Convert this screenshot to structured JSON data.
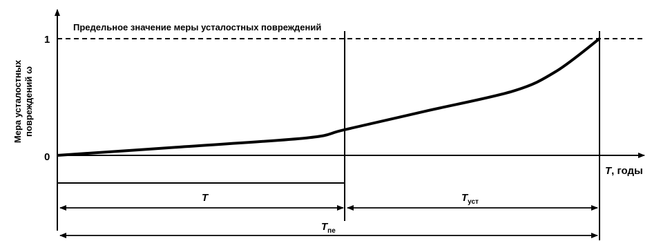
{
  "chart_data": {
    "type": "line",
    "ylabel_line1": "Мера усталостных",
    "ylabel_line2": "повреждений ω",
    "xlabel_main": "T",
    "xlabel_suffix": ", годы",
    "limit_label": "Предельное значение меры усталостных повреждений",
    "yticks": [
      "0",
      "1"
    ],
    "ylim": [
      0,
      1
    ],
    "xlim": [
      0,
      1
    ],
    "current_time_fraction": 0.53,
    "series": [
      {
        "points": [
          [
            0,
            0
          ],
          [
            0.22,
            0.07
          ],
          [
            0.46,
            0.15
          ],
          [
            0.53,
            0.22
          ],
          [
            0.68,
            0.38
          ],
          [
            0.84,
            0.55
          ],
          [
            0.92,
            0.72
          ],
          [
            1.0,
            1.0
          ]
        ]
      }
    ],
    "spans": {
      "t_main": "T",
      "t_ost_main": "T",
      "t_ost_sub": "уст",
      "t_pe_main": "T",
      "t_pe_sub": "пе"
    }
  }
}
